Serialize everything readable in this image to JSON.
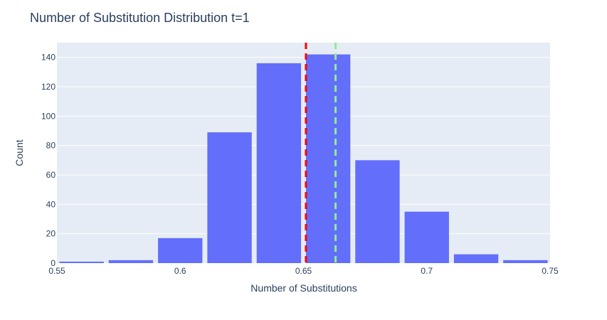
{
  "chart_data": {
    "type": "bar",
    "title": "Number of Substitution Distribution t=1",
    "xlabel": "Number of Substitutions",
    "ylabel": "Count",
    "xlim": [
      0.55,
      0.75
    ],
    "ylim": [
      0,
      150
    ],
    "x_ticks": [
      "0.55",
      "0.6",
      "0.65",
      "0.7",
      "0.75"
    ],
    "x_tick_values": [
      0.55,
      0.6,
      0.65,
      0.7,
      0.75
    ],
    "y_ticks": [
      "0",
      "20",
      "40",
      "60",
      "80",
      "100",
      "120",
      "140"
    ],
    "y_tick_values": [
      0,
      20,
      40,
      60,
      80,
      100,
      120,
      140
    ],
    "bins": [
      {
        "start": 0.55,
        "end": 0.57,
        "count": 1
      },
      {
        "start": 0.57,
        "end": 0.59,
        "count": 2
      },
      {
        "start": 0.59,
        "end": 0.61,
        "count": 17
      },
      {
        "start": 0.61,
        "end": 0.63,
        "count": 89
      },
      {
        "start": 0.63,
        "end": 0.65,
        "count": 136
      },
      {
        "start": 0.65,
        "end": 0.67,
        "count": 142
      },
      {
        "start": 0.67,
        "end": 0.69,
        "count": 70
      },
      {
        "start": 0.69,
        "end": 0.71,
        "count": 35
      },
      {
        "start": 0.71,
        "end": 0.73,
        "count": 6
      },
      {
        "start": 0.73,
        "end": 0.75,
        "count": 2
      }
    ],
    "vertical_lines": [
      {
        "x": 0.651,
        "color": "#ff0000",
        "dash": "dashed"
      },
      {
        "x": 0.663,
        "color": "#90ee90",
        "dash": "dashed"
      }
    ],
    "grid": true,
    "colors": {
      "bar": "#636efa",
      "plot_background": "#e5ecf6",
      "grid": "#ffffff",
      "text": "#2a3f5f"
    }
  }
}
